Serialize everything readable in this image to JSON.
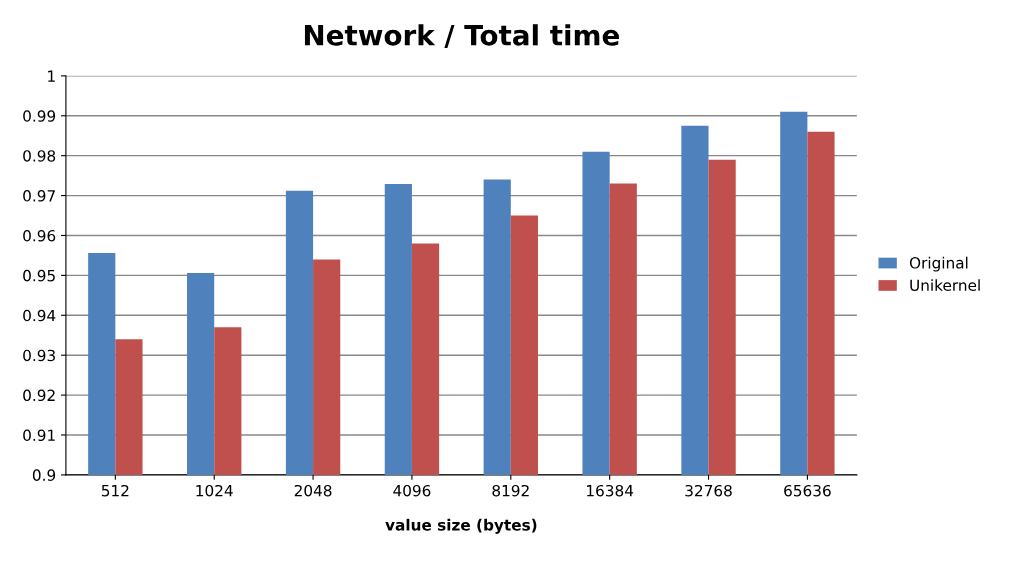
{
  "chart_data": {
    "type": "bar",
    "title": "Network / Total time",
    "xlabel": "value size (bytes)",
    "categories": [
      "512",
      "1024",
      "2048",
      "4096",
      "8192",
      "16384",
      "32768",
      "65636"
    ],
    "series": [
      {
        "name": "Original",
        "color": "#4f81bd",
        "values": [
          0.9556,
          0.9506,
          0.9712,
          0.9729,
          0.974,
          0.981,
          0.9875,
          0.991
        ]
      },
      {
        "name": "Unikernel",
        "color": "#c0504d",
        "values": [
          0.934,
          0.937,
          0.954,
          0.958,
          0.965,
          0.973,
          0.979,
          0.986
        ]
      }
    ],
    "ylim": [
      0.9,
      1
    ],
    "yticks": [
      0.9,
      0.91,
      0.92,
      0.93,
      0.94,
      0.95,
      0.96,
      0.97,
      0.98,
      0.99,
      1
    ],
    "grid": "y",
    "legend": "right"
  }
}
